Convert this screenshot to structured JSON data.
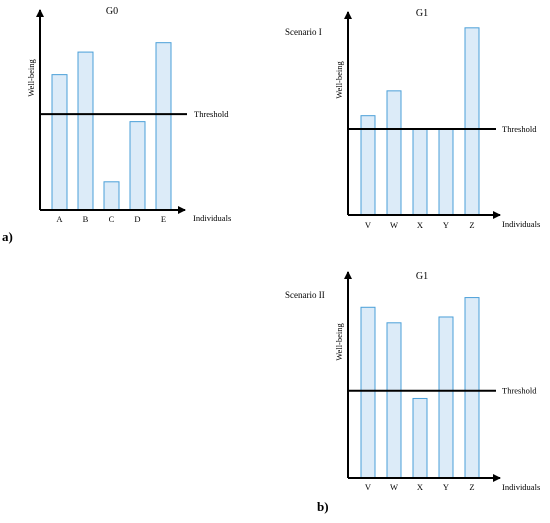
{
  "colors": {
    "bar_fill": "#dcebf8",
    "bar_stroke": "#4a9fd8",
    "axis": "#000000",
    "threshold": "#000000"
  },
  "chart_data": [
    {
      "type": "bar",
      "title": "G0",
      "scenario": "",
      "ylabel": "Well-being",
      "xlabel": "Individuals",
      "categories": [
        "A",
        "B",
        "C",
        "D",
        "E"
      ],
      "values": [
        72,
        84,
        15,
        47,
        89
      ],
      "threshold": 51,
      "threshold_label": "Threshold",
      "ylim": [
        0,
        100
      ],
      "panel_label": "a)"
    },
    {
      "type": "bar",
      "title": "G1",
      "scenario": "Scenario I",
      "ylabel": "Well-being",
      "xlabel": "Individuals",
      "categories": [
        "V",
        "W",
        "X",
        "Y",
        "Z"
      ],
      "values": [
        52,
        65,
        45,
        45,
        98
      ],
      "threshold": 45,
      "threshold_label": "Threshold",
      "ylim": [
        0,
        100
      ],
      "panel_label": ""
    },
    {
      "type": "bar",
      "title": "G1",
      "scenario": "Scenario II",
      "ylabel": "Well-being",
      "xlabel": "Individuals",
      "categories": [
        "V",
        "W",
        "X",
        "Y",
        "Z"
      ],
      "values": [
        88,
        80,
        41,
        83,
        93
      ],
      "threshold": 45,
      "threshold_label": "Threshold",
      "ylim": [
        0,
        100
      ],
      "panel_label": "b)"
    }
  ]
}
